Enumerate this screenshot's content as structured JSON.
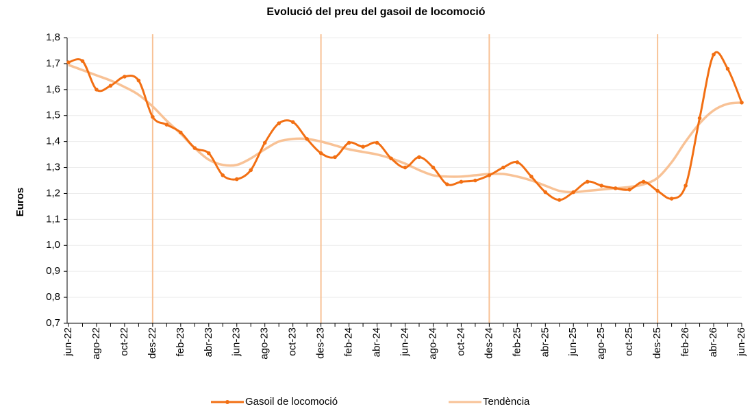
{
  "chart_data": {
    "type": "line",
    "title": "Evolució del preu del gasoil de locomoció",
    "y_label": "Euros",
    "categories": [
      "jun-22",
      null,
      "ago-22",
      null,
      "oct-22",
      null,
      "des-22",
      null,
      "feb-23",
      null,
      "abr-23",
      null,
      "jun-23",
      null,
      "ago-23",
      null,
      "oct-23",
      null,
      "des-23",
      null,
      "feb-24",
      null,
      "abr-24",
      null,
      "jun-24",
      null,
      "ago-24",
      null,
      "oct-24",
      null,
      "des-24",
      null,
      "feb-25",
      null,
      "abr-25",
      null,
      "jun-25",
      null,
      "ago-25",
      null,
      "oct-25",
      null,
      "des-25",
      null,
      "feb-26",
      null,
      "abr-26",
      null,
      "jun-26"
    ],
    "series": [
      {
        "name": "Gasoil de locomoció",
        "color": "#f26f13",
        "markers": true,
        "values": [
          1.705,
          1.71,
          1.6,
          1.615,
          1.65,
          1.635,
          1.495,
          1.465,
          1.435,
          1.375,
          1.355,
          1.27,
          1.255,
          1.29,
          1.395,
          1.47,
          1.475,
          1.41,
          1.355,
          1.34,
          1.395,
          1.38,
          1.395,
          1.335,
          1.3,
          1.34,
          1.3,
          1.235,
          1.245,
          1.25,
          1.27,
          1.3,
          1.32,
          1.265,
          1.205,
          1.175,
          1.205,
          1.245,
          1.23,
          1.22,
          1.215,
          1.245,
          1.21,
          1.18,
          1.23,
          1.49,
          1.735,
          1.68,
          1.55
        ]
      },
      {
        "name": "Tendència",
        "color": "#f8c296",
        "markers": false,
        "values": [
          1.695,
          1.675,
          1.655,
          1.635,
          1.61,
          1.58,
          1.535,
          1.48,
          1.43,
          1.375,
          1.33,
          1.31,
          1.31,
          1.335,
          1.37,
          1.4,
          1.41,
          1.41,
          1.4,
          1.385,
          1.37,
          1.36,
          1.35,
          1.335,
          1.315,
          1.29,
          1.27,
          1.265,
          1.265,
          1.27,
          1.275,
          1.275,
          1.265,
          1.25,
          1.23,
          1.21,
          1.205,
          1.21,
          1.215,
          1.22,
          1.225,
          1.235,
          1.26,
          1.32,
          1.4,
          1.47,
          1.52,
          1.545,
          1.55
        ]
      }
    ],
    "vlines": [
      "des-22",
      "des-23",
      "des-24",
      "des-25"
    ],
    "vline_color": "#f8c296",
    "ylim": [
      0.7,
      1.8
    ],
    "yticks": [
      {
        "value": 0.7,
        "label": "0,7"
      },
      {
        "value": 0.8,
        "label": "0,8"
      },
      {
        "value": 0.9,
        "label": "0,9"
      },
      {
        "value": 1.0,
        "label": "1,0"
      },
      {
        "value": 1.1,
        "label": "1,1"
      },
      {
        "value": 1.2,
        "label": "1,2"
      },
      {
        "value": 1.3,
        "label": "1,3"
      },
      {
        "value": 1.4,
        "label": "1,4"
      },
      {
        "value": 1.5,
        "label": "1,5"
      },
      {
        "value": 1.6,
        "label": "1,6"
      },
      {
        "value": 1.7,
        "label": "1,7"
      },
      {
        "value": 1.8,
        "label": "1,8"
      }
    ],
    "grid": true,
    "legend": "bottom"
  }
}
